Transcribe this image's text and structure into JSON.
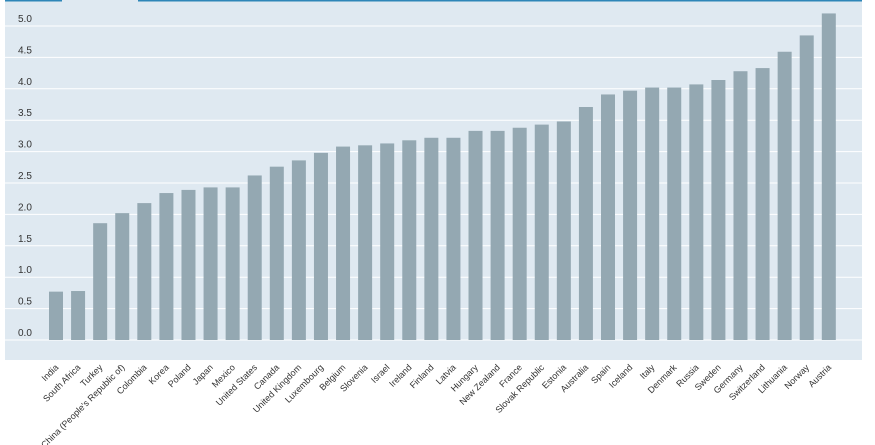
{
  "chart_data": {
    "type": "bar",
    "categories": [
      "India",
      "South Africa",
      "Turkey",
      "China (People's Republic of)",
      "Colombia",
      "Korea",
      "Poland",
      "Japan",
      "Mexico",
      "United States",
      "Canada",
      "United Kingdom",
      "Luxembourg",
      "Belgium",
      "Slovenia",
      "Israel",
      "Ireland",
      "Finland",
      "Latvia",
      "Hungary",
      "New Zealand",
      "France",
      "Slovak Republic",
      "Estonia",
      "Australia",
      "Spain",
      "Iceland",
      "Italy",
      "Denmark",
      "Russia",
      "Sweden",
      "Germany",
      "Switzerland",
      "Lithuania",
      "Norway",
      "Austria"
    ],
    "values": [
      0.77,
      0.78,
      1.86,
      2.02,
      2.18,
      2.34,
      2.39,
      2.43,
      2.43,
      2.62,
      2.76,
      2.86,
      2.98,
      3.08,
      3.1,
      3.13,
      3.18,
      3.22,
      3.22,
      3.33,
      3.33,
      3.38,
      3.43,
      3.48,
      3.71,
      3.91,
      3.97,
      4.02,
      4.02,
      4.07,
      4.14,
      4.28,
      4.33,
      4.59,
      4.85,
      5.2
    ],
    "yticks": [
      "0.0",
      "0.5",
      "1.0",
      "1.5",
      "2.0",
      "2.5",
      "3.0",
      "3.5",
      "4.0",
      "4.5",
      "5.0"
    ],
    "ylim": [
      -0.5,
      5.3
    ],
    "grid": true,
    "colors": {
      "bar": "#94a8b2",
      "plot_background": "#dfe9f1",
      "gridline": "#ffffff",
      "top_rule": "#2e86b8"
    }
  }
}
